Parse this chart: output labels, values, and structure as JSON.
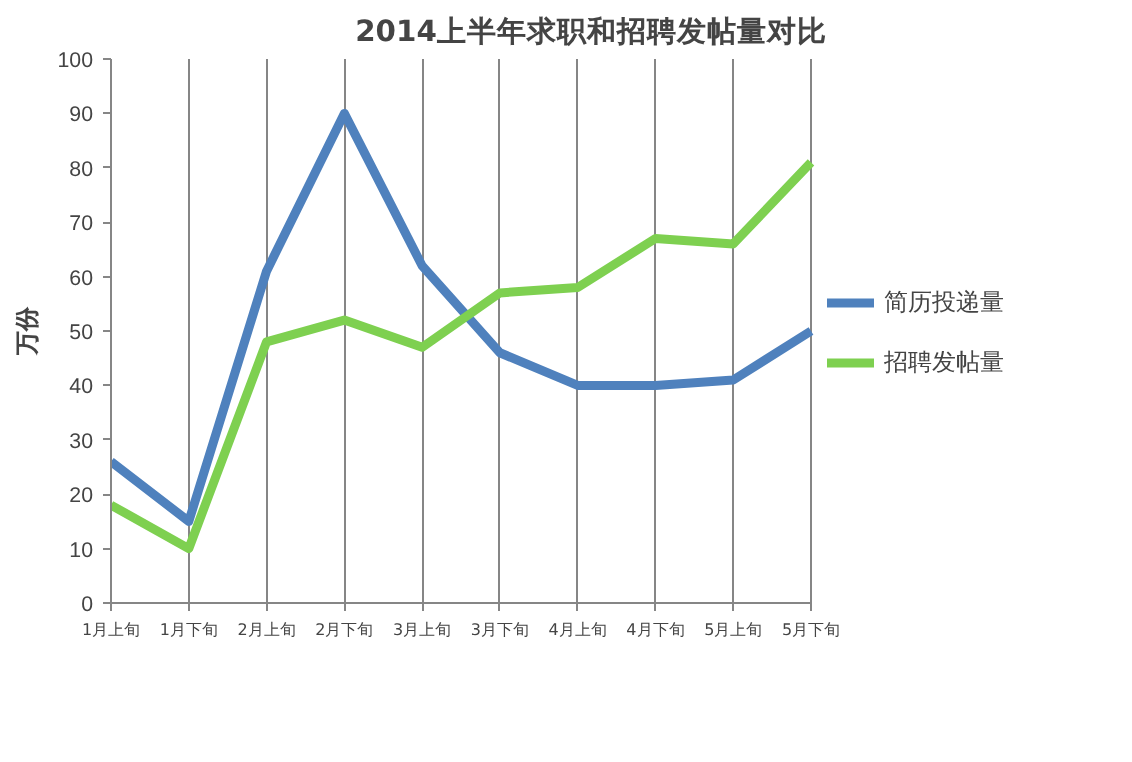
{
  "chart_data": {
    "type": "line",
    "title": "2014上半年求职和招聘发帖量对比",
    "ylabel": "万份",
    "categories": [
      "1月上旬",
      "1月下旬",
      "2月上旬",
      "2月下旬",
      "3月上旬",
      "3月下旬",
      "4月上旬",
      "4月下旬",
      "5月上旬",
      "5月下旬"
    ],
    "series": [
      {
        "name": "简历投递量",
        "color": "#4f81bd",
        "values": [
          26,
          15,
          61,
          90,
          62,
          46,
          40,
          40,
          41,
          50
        ]
      },
      {
        "name": "招聘发帖量",
        "color": "#7ed050",
        "values": [
          18,
          10,
          48,
          52,
          47,
          57,
          58,
          67,
          66,
          81
        ]
      }
    ],
    "ylim": [
      0,
      100
    ],
    "yticks": [
      0,
      10,
      20,
      30,
      40,
      50,
      60,
      70,
      80,
      90,
      100
    ],
    "grid": "x",
    "legend": "right",
    "marker": "none",
    "line_style": "solid"
  }
}
